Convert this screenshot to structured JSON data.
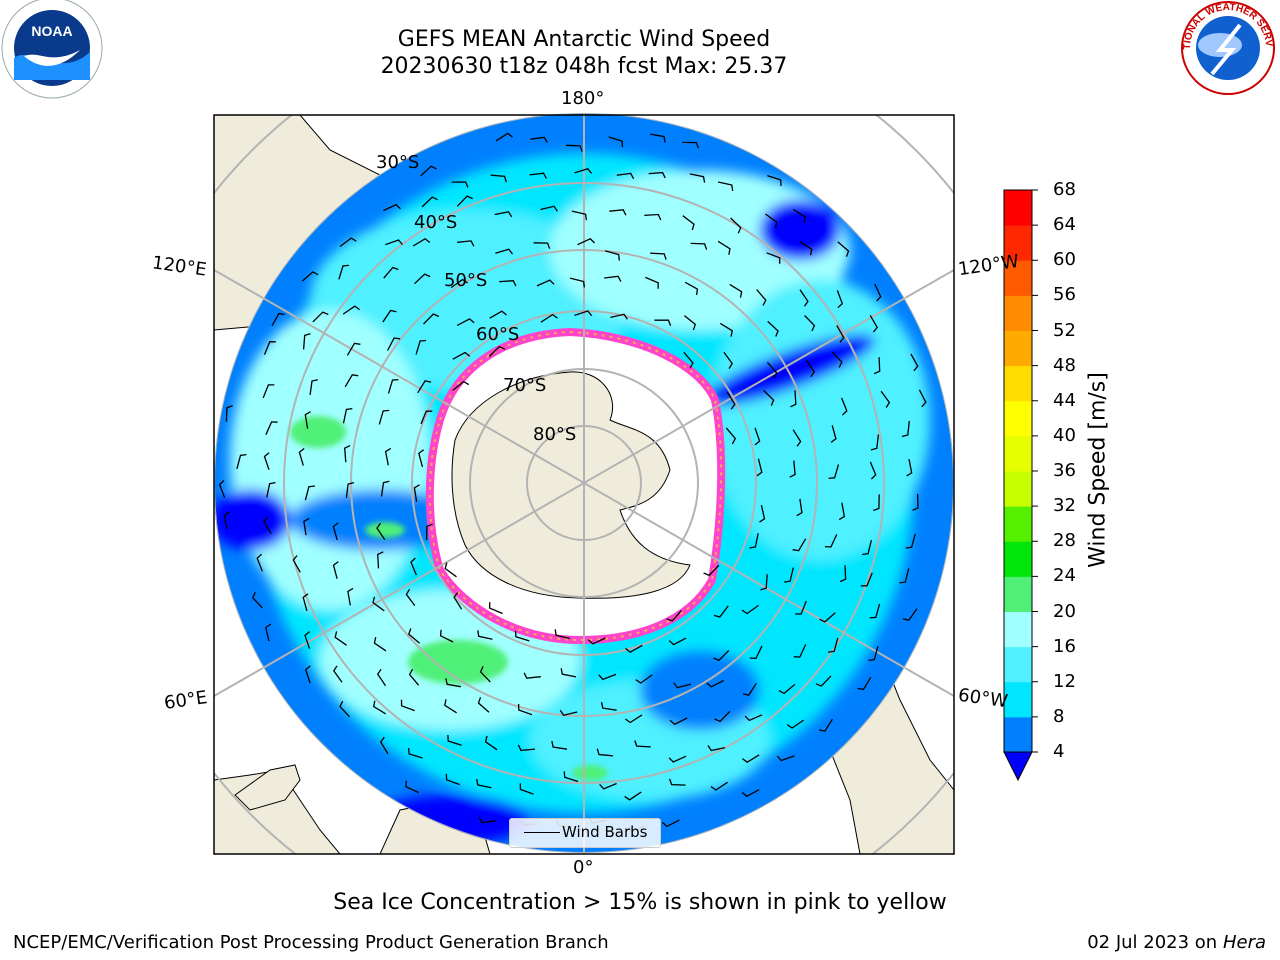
{
  "title": {
    "line1": "GEFS MEAN Antarctic Wind Speed",
    "line2": "20230630 t18z 048h fcst   Max: 25.37"
  },
  "logos": {
    "left": "noara-logo",
    "right": "nws-logo",
    "nws_ring_text": "NATIONAL WEATHER SERVICE"
  },
  "map": {
    "projection": "south-polar-stereographic",
    "longitude_labels": {
      "top": "180°",
      "bottom": "0°",
      "upper_left": "120°E",
      "upper_right": "120°W",
      "lower_left": "60°E",
      "lower_right": "60°W"
    },
    "latitude_labels": [
      "30°S",
      "40°S",
      "50°S",
      "60°S",
      "70°S",
      "80°S"
    ],
    "colors": {
      "land": "#efecdc",
      "ice": "#ffffff",
      "ice_edge": "#ff44cc",
      "ice_edge_2": "#ffaa55",
      "graticule": "#b3b3b3"
    },
    "legend_label": "Wind Barbs"
  },
  "colorbar": {
    "label": "Wind Speed [m/s]",
    "ticks": [
      "68",
      "64",
      "60",
      "56",
      "52",
      "48",
      "44",
      "40",
      "36",
      "32",
      "28",
      "24",
      "20",
      "16",
      "12",
      "8",
      "4"
    ],
    "colors": [
      "#0000ff",
      "#0080ff",
      "#00e6ff",
      "#50f0ff",
      "#a0ffff",
      "#50f078",
      "#00e60a",
      "#55f000",
      "#c8ff00",
      "#e6ff00",
      "#ffff00",
      "#ffdd00",
      "#ffaa00",
      "#ff8c00",
      "#ff5a00",
      "#ff2800",
      "#ff0000"
    ]
  },
  "caption": "Sea Ice Concentration > 15% is shown in pink to yellow",
  "footer": {
    "left": "NCEP/EMC/Verification Post Processing Product Generation Branch",
    "right_prefix": "02 Jul 2023 on ",
    "right_host": "Hera"
  }
}
